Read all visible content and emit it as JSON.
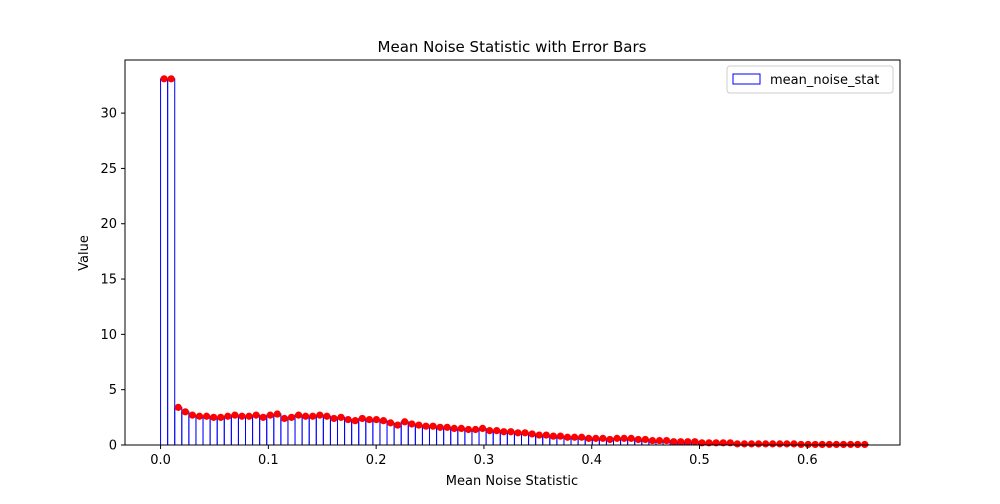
{
  "chart_data": {
    "type": "bar",
    "title": "Mean Noise Statistic with Error Bars",
    "xlabel": "Mean Noise Statistic",
    "ylabel": "Value",
    "xlim": [
      -0.033,
      0.686
    ],
    "ylim": [
      0,
      34.8
    ],
    "xticks": [
      0.0,
      0.1,
      0.2,
      0.3,
      0.4,
      0.5,
      0.6
    ],
    "xtick_labels": [
      "0.0",
      "0.1",
      "0.2",
      "0.3",
      "0.4",
      "0.5",
      "0.6"
    ],
    "yticks": [
      0,
      5,
      10,
      15,
      20,
      25,
      30
    ],
    "ytick_labels": [
      "0",
      "5",
      "10",
      "15",
      "20",
      "25",
      "30"
    ],
    "grid": false,
    "legend": {
      "position": "top-right",
      "entries": [
        "mean_noise_stat"
      ]
    },
    "bin_width": 0.00657,
    "series": [
      {
        "name": "mean_noise_stat",
        "color_edge": "#0000ff",
        "color_points": "#ff0000",
        "x": [
          0.0,
          0.00657,
          0.01313,
          0.0197,
          0.02626,
          0.03283,
          0.0394,
          0.04596,
          0.05253,
          0.05909,
          0.06566,
          0.07222,
          0.07879,
          0.08536,
          0.09192,
          0.09849,
          0.10505,
          0.11162,
          0.11818,
          0.12475,
          0.13131,
          0.13788,
          0.14444,
          0.15101,
          0.15758,
          0.16414,
          0.17071,
          0.17727,
          0.18384,
          0.1904,
          0.19697,
          0.20353,
          0.2101,
          0.21667,
          0.22323,
          0.2298,
          0.23636,
          0.24293,
          0.24949,
          0.25606,
          0.26263,
          0.26919,
          0.27576,
          0.28232,
          0.28889,
          0.29545,
          0.30202,
          0.30858,
          0.31515,
          0.32172,
          0.32828,
          0.33485,
          0.34141,
          0.34798,
          0.35454,
          0.36111,
          0.36768,
          0.37424,
          0.38081,
          0.38737,
          0.39394,
          0.4005,
          0.40707,
          0.41363,
          0.4202,
          0.42677,
          0.43333,
          0.4399,
          0.44646,
          0.45303,
          0.45959,
          0.46616,
          0.47273,
          0.47929,
          0.48586,
          0.49242,
          0.49899,
          0.50555,
          0.51212,
          0.51868,
          0.52525,
          0.53182,
          0.53838,
          0.54495,
          0.55151,
          0.55808,
          0.56464,
          0.57121,
          0.57778,
          0.58434,
          0.59091,
          0.59747,
          0.60404,
          0.6106,
          0.61717,
          0.62373,
          0.6303,
          0.63687,
          0.64343,
          0.65
        ],
        "values": [
          33.1,
          33.1,
          3.4,
          3.0,
          2.7,
          2.6,
          2.6,
          2.5,
          2.5,
          2.6,
          2.7,
          2.6,
          2.6,
          2.7,
          2.5,
          2.7,
          2.8,
          2.4,
          2.5,
          2.7,
          2.6,
          2.6,
          2.7,
          2.6,
          2.4,
          2.5,
          2.3,
          2.2,
          2.4,
          2.3,
          2.3,
          2.2,
          2.0,
          1.8,
          2.1,
          1.9,
          1.8,
          1.7,
          1.7,
          1.6,
          1.6,
          1.5,
          1.5,
          1.4,
          1.4,
          1.5,
          1.3,
          1.3,
          1.2,
          1.2,
          1.1,
          1.1,
          1.0,
          0.9,
          0.9,
          0.8,
          0.8,
          0.7,
          0.7,
          0.7,
          0.6,
          0.6,
          0.6,
          0.5,
          0.6,
          0.6,
          0.6,
          0.5,
          0.5,
          0.4,
          0.4,
          0.4,
          0.3,
          0.3,
          0.3,
          0.3,
          0.2,
          0.2,
          0.2,
          0.2,
          0.2,
          0.1,
          0.1,
          0.1,
          0.1,
          0.1,
          0.1,
          0.1,
          0.1,
          0.1,
          0.05,
          0.05,
          0.05,
          0.05,
          0.05,
          0.05,
          0.05,
          0.05,
          0.05,
          0.05
        ]
      }
    ]
  }
}
